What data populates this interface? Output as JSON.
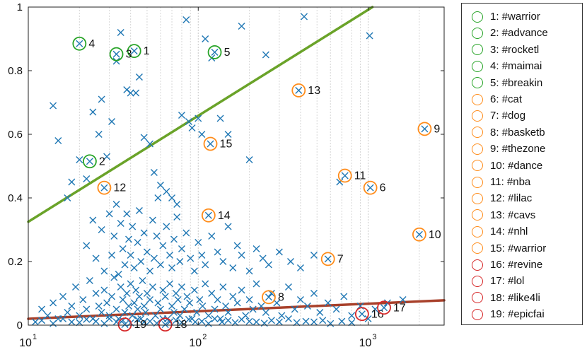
{
  "chart_data": {
    "type": "scatter",
    "title": "",
    "xlabel": "",
    "ylabel": "",
    "xscale": "log",
    "xlim": [
      10,
      2800
    ],
    "ylim": [
      0,
      1
    ],
    "grid": "x-major-and-minor",
    "legend_position": "right",
    "x_tick_labels": [
      {
        "base": "10",
        "exp": "1",
        "value": 10
      },
      {
        "base": "10",
        "exp": "2",
        "value": 100
      },
      {
        "base": "10",
        "exp": "3",
        "value": 1000
      }
    ],
    "y_tick_labels": [
      {
        "label": "0",
        "value": 0
      },
      {
        "label": "0.2",
        "value": 0.2
      },
      {
        "label": "0.4",
        "value": 0.4
      },
      {
        "label": "0.6",
        "value": 0.6
      },
      {
        "label": "0.8",
        "value": 0.8
      },
      {
        "label": "1",
        "value": 1
      }
    ],
    "colors": {
      "points": "#1f77b4",
      "green": "#28a428",
      "orange": "#ff8c1a",
      "red": "#d62728",
      "green_line": "#6aa329",
      "red_line": "#a8402a"
    },
    "trend_lines": [
      {
        "color": "#6aa329",
        "x": [
          10,
          1060
        ],
        "y": [
          0.325,
          1.0
        ]
      },
      {
        "color": "#a8402a",
        "x": [
          10,
          2800
        ],
        "y": [
          0.02,
          0.078
        ]
      }
    ],
    "scatter_points": [
      [
        14,
        0.69
      ],
      [
        15,
        0.58
      ],
      [
        18,
        0.45
      ],
      [
        17,
        0.4
      ],
      [
        20,
        0.52
      ],
      [
        22,
        0.46
      ],
      [
        24,
        0.67
      ],
      [
        26,
        0.6
      ],
      [
        27,
        0.71
      ],
      [
        29,
        0.53
      ],
      [
        31,
        0.64
      ],
      [
        33,
        0.83
      ],
      [
        35,
        0.92
      ],
      [
        38,
        0.74
      ],
      [
        40,
        0.73
      ],
      [
        43,
        0.73
      ],
      [
        45,
        0.78
      ],
      [
        48,
        0.59
      ],
      [
        52,
        0.57
      ],
      [
        55,
        0.48
      ],
      [
        58,
        0.4
      ],
      [
        60,
        0.44
      ],
      [
        65,
        0.42
      ],
      [
        70,
        0.4
      ],
      [
        75,
        0.38
      ],
      [
        80,
        0.66
      ],
      [
        85,
        0.96
      ],
      [
        88,
        0.64
      ],
      [
        92,
        0.62
      ],
      [
        100,
        0.65
      ],
      [
        105,
        0.6
      ],
      [
        110,
        0.9
      ],
      [
        120,
        0.84
      ],
      [
        135,
        0.65
      ],
      [
        150,
        0.6
      ],
      [
        180,
        0.94
      ],
      [
        200,
        0.52
      ],
      [
        250,
        0.85
      ],
      [
        420,
        0.97
      ],
      [
        680,
        0.45
      ],
      [
        1020,
        0.91
      ],
      [
        22,
        0.25
      ],
      [
        24,
        0.33
      ],
      [
        25,
        0.21
      ],
      [
        27,
        0.3
      ],
      [
        28,
        0.17
      ],
      [
        30,
        0.35
      ],
      [
        31,
        0.22
      ],
      [
        32,
        0.28
      ],
      [
        33,
        0.38
      ],
      [
        34,
        0.16
      ],
      [
        35,
        0.32
      ],
      [
        36,
        0.24
      ],
      [
        37,
        0.19
      ],
      [
        38,
        0.35
      ],
      [
        39,
        0.27
      ],
      [
        40,
        0.22
      ],
      [
        41,
        0.31
      ],
      [
        42,
        0.18
      ],
      [
        44,
        0.26
      ],
      [
        45,
        0.36
      ],
      [
        46,
        0.2
      ],
      [
        48,
        0.29
      ],
      [
        50,
        0.23
      ],
      [
        52,
        0.17
      ],
      [
        54,
        0.33
      ],
      [
        55,
        0.21
      ],
      [
        57,
        0.28
      ],
      [
        60,
        0.19
      ],
      [
        62,
        0.25
      ],
      [
        65,
        0.31
      ],
      [
        68,
        0.22
      ],
      [
        70,
        0.18
      ],
      [
        72,
        0.27
      ],
      [
        75,
        0.34
      ],
      [
        78,
        0.2
      ],
      [
        80,
        0.24
      ],
      [
        85,
        0.29
      ],
      [
        90,
        0.21
      ],
      [
        95,
        0.17
      ],
      [
        100,
        0.26
      ],
      [
        105,
        0.22
      ],
      [
        110,
        0.19
      ],
      [
        120,
        0.28
      ],
      [
        130,
        0.23
      ],
      [
        140,
        0.2
      ],
      [
        150,
        0.31
      ],
      [
        160,
        0.18
      ],
      [
        170,
        0.25
      ],
      [
        180,
        0.22
      ],
      [
        200,
        0.17
      ],
      [
        220,
        0.24
      ],
      [
        240,
        0.21
      ],
      [
        260,
        0.19
      ],
      [
        300,
        0.23
      ],
      [
        350,
        0.2
      ],
      [
        400,
        0.18
      ],
      [
        480,
        0.22
      ],
      [
        12,
        0.05
      ],
      [
        13,
        0.03
      ],
      [
        14,
        0.07
      ],
      [
        15,
        0.02
      ],
      [
        16,
        0.09
      ],
      [
        17,
        0.04
      ],
      [
        18,
        0.06
      ],
      [
        19,
        0.12
      ],
      [
        20,
        0.03
      ],
      [
        21,
        0.08
      ],
      [
        22,
        0.05
      ],
      [
        23,
        0.14
      ],
      [
        24,
        0.02
      ],
      [
        25,
        0.1
      ],
      [
        26,
        0.06
      ],
      [
        27,
        0.04
      ],
      [
        28,
        0.11
      ],
      [
        29,
        0.07
      ],
      [
        30,
        0.03
      ],
      [
        31,
        0.09
      ],
      [
        32,
        0.15
      ],
      [
        33,
        0.05
      ],
      [
        34,
        0.02
      ],
      [
        35,
        0.12
      ],
      [
        36,
        0.08
      ],
      [
        37,
        0.04
      ],
      [
        38,
        0.1
      ],
      [
        39,
        0.06
      ],
      [
        40,
        0.13
      ],
      [
        41,
        0.03
      ],
      [
        42,
        0.07
      ],
      [
        43,
        0.11
      ],
      [
        44,
        0.05
      ],
      [
        45,
        0.09
      ],
      [
        46,
        0.02
      ],
      [
        47,
        0.14
      ],
      [
        48,
        0.06
      ],
      [
        49,
        0.04
      ],
      [
        50,
        0.1
      ],
      [
        52,
        0.08
      ],
      [
        54,
        0.12
      ],
      [
        56,
        0.03
      ],
      [
        58,
        0.07
      ],
      [
        60,
        0.05
      ],
      [
        62,
        0.11
      ],
      [
        64,
        0.09
      ],
      [
        66,
        0.02
      ],
      [
        68,
        0.13
      ],
      [
        70,
        0.06
      ],
      [
        72,
        0.04
      ],
      [
        74,
        0.1
      ],
      [
        76,
        0.08
      ],
      [
        78,
        0.03
      ],
      [
        80,
        0.12
      ],
      [
        83,
        0.05
      ],
      [
        86,
        0.09
      ],
      [
        89,
        0.07
      ],
      [
        92,
        0.02
      ],
      [
        95,
        0.11
      ],
      [
        98,
        0.04
      ],
      [
        102,
        0.08
      ],
      [
        106,
        0.06
      ],
      [
        110,
        0.13
      ],
      [
        115,
        0.03
      ],
      [
        120,
        0.1
      ],
      [
        125,
        0.05
      ],
      [
        130,
        0.08
      ],
      [
        135,
        0.02
      ],
      [
        140,
        0.12
      ],
      [
        145,
        0.06
      ],
      [
        150,
        0.04
      ],
      [
        160,
        0.09
      ],
      [
        170,
        0.07
      ],
      [
        180,
        0.11
      ],
      [
        190,
        0.03
      ],
      [
        200,
        0.08
      ],
      [
        210,
        0.05
      ],
      [
        220,
        0.13
      ],
      [
        235,
        0.06
      ],
      [
        250,
        0.04
      ],
      [
        270,
        0.1
      ],
      [
        290,
        0.07
      ],
      [
        310,
        0.03
      ],
      [
        340,
        0.12
      ],
      [
        370,
        0.05
      ],
      [
        400,
        0.08
      ],
      [
        440,
        0.06
      ],
      [
        480,
        0.1
      ],
      [
        520,
        0.04
      ],
      [
        580,
        0.07
      ],
      [
        650,
        0.05
      ],
      [
        720,
        0.09
      ],
      [
        800,
        0.03
      ],
      [
        900,
        0.06
      ],
      [
        1100,
        0.05
      ],
      [
        1300,
        0.07
      ],
      [
        1600,
        0.08
      ],
      [
        11,
        0.01
      ],
      [
        12,
        0.015
      ],
      [
        14,
        0.005
      ],
      [
        16,
        0.02
      ],
      [
        18,
        0.01
      ],
      [
        20,
        0.008
      ],
      [
        22,
        0.018
      ],
      [
        25,
        0.012
      ],
      [
        28,
        0.005
      ],
      [
        30,
        0.02
      ],
      [
        33,
        0.01
      ],
      [
        36,
        0.015
      ],
      [
        40,
        0.007
      ],
      [
        44,
        0.018
      ],
      [
        48,
        0.01
      ],
      [
        52,
        0.012
      ],
      [
        57,
        0.006
      ],
      [
        62,
        0.02
      ],
      [
        68,
        0.01
      ],
      [
        74,
        0.015
      ],
      [
        80,
        0.008
      ],
      [
        88,
        0.018
      ],
      [
        96,
        0.01
      ],
      [
        105,
        0.012
      ],
      [
        115,
        0.005
      ],
      [
        125,
        0.02
      ],
      [
        138,
        0.01
      ],
      [
        150,
        0.015
      ],
      [
        165,
        0.008
      ],
      [
        180,
        0.018
      ],
      [
        200,
        0.012
      ],
      [
        220,
        0.01
      ],
      [
        245,
        0.006
      ],
      [
        270,
        0.015
      ],
      [
        300,
        0.01
      ],
      [
        340,
        0.02
      ],
      [
        380,
        0.008
      ],
      [
        430,
        0.012
      ],
      [
        480,
        0.01
      ],
      [
        540,
        0.015
      ],
      [
        600,
        0.005
      ],
      [
        700,
        0.012
      ],
      [
        800,
        0.008
      ],
      [
        1000,
        0.02
      ]
    ],
    "highlighted": [
      {
        "id": "1",
        "hashtag": "#warrior",
        "group": "green",
        "x": 42,
        "y": 0.862
      },
      {
        "id": "2",
        "hashtag": "#advance",
        "group": "green",
        "x": 23,
        "y": 0.515
      },
      {
        "id": "3",
        "hashtag": "#rocketl",
        "group": "green",
        "x": 33,
        "y": 0.852
      },
      {
        "id": "4",
        "hashtag": "#maimai",
        "group": "green",
        "x": 20,
        "y": 0.885
      },
      {
        "id": "5",
        "hashtag": "#breakin",
        "group": "green",
        "x": 125,
        "y": 0.858
      },
      {
        "id": "6",
        "hashtag": "#cat",
        "group": "orange",
        "x": 1030,
        "y": 0.432
      },
      {
        "id": "7",
        "hashtag": "#dog",
        "group": "orange",
        "x": 580,
        "y": 0.208
      },
      {
        "id": "8",
        "hashtag": "#basketb",
        "group": "orange",
        "x": 260,
        "y": 0.088
      },
      {
        "id": "9",
        "hashtag": "#thezone",
        "group": "orange",
        "x": 2150,
        "y": 0.617
      },
      {
        "id": "10",
        "hashtag": "#dance",
        "group": "orange",
        "x": 2000,
        "y": 0.285
      },
      {
        "id": "11",
        "hashtag": "#nba",
        "group": "orange",
        "x": 730,
        "y": 0.47
      },
      {
        "id": "12",
        "hashtag": "#lilac",
        "group": "orange",
        "x": 28,
        "y": 0.432
      },
      {
        "id": "13",
        "hashtag": "#cavs",
        "group": "orange",
        "x": 390,
        "y": 0.738
      },
      {
        "id": "14",
        "hashtag": "#nhl",
        "group": "orange",
        "x": 115,
        "y": 0.345
      },
      {
        "id": "15",
        "hashtag": "#warrior",
        "group": "orange",
        "x": 118,
        "y": 0.57
      },
      {
        "id": "16",
        "hashtag": "#revine",
        "group": "red",
        "x": 920,
        "y": 0.035
      },
      {
        "id": "17",
        "hashtag": "#lol",
        "group": "red",
        "x": 1240,
        "y": 0.055
      },
      {
        "id": "18",
        "hashtag": "#like4li",
        "group": "red",
        "x": 64,
        "y": 0.002
      },
      {
        "id": "19",
        "hashtag": "#epicfai",
        "group": "red",
        "x": 37,
        "y": 0.002
      }
    ]
  },
  "legend": {
    "items": [
      {
        "label": "1: #warrior",
        "group": "green"
      },
      {
        "label": "2: #advance",
        "group": "green"
      },
      {
        "label": "3: #rocketl",
        "group": "green"
      },
      {
        "label": "4: #maimai",
        "group": "green"
      },
      {
        "label": "5: #breakin",
        "group": "green"
      },
      {
        "label": "6: #cat",
        "group": "orange"
      },
      {
        "label": "7: #dog",
        "group": "orange"
      },
      {
        "label": "8: #basketb",
        "group": "orange"
      },
      {
        "label": "9: #thezone",
        "group": "orange"
      },
      {
        "label": "10: #dance",
        "group": "orange"
      },
      {
        "label": "11: #nba",
        "group": "orange"
      },
      {
        "label": "12: #lilac",
        "group": "orange"
      },
      {
        "label": "13: #cavs",
        "group": "orange"
      },
      {
        "label": "14: #nhl",
        "group": "orange"
      },
      {
        "label": "15: #warrior",
        "group": "orange"
      },
      {
        "label": "16: #revine",
        "group": "red"
      },
      {
        "label": "17: #lol",
        "group": "red"
      },
      {
        "label": "18: #like4li",
        "group": "red"
      },
      {
        "label": "19: #epicfai",
        "group": "red"
      }
    ]
  }
}
